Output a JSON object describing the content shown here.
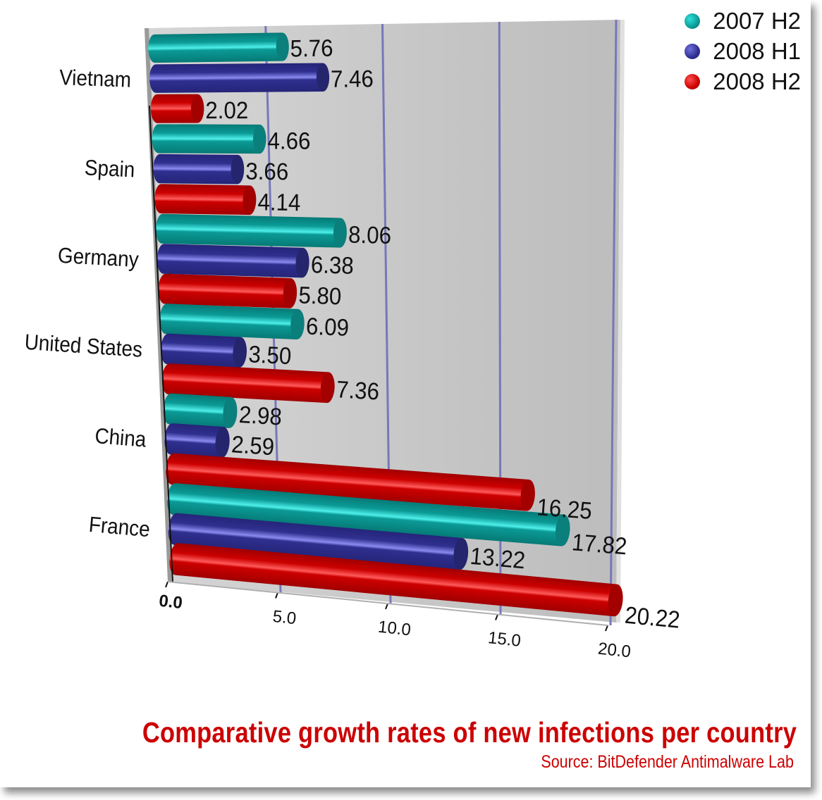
{
  "chart_data": {
    "type": "bar",
    "orientation": "horizontal",
    "style": "3d-cylinder",
    "title": "Comparative growth rates of new infections per country",
    "subtitle": "Source: BitDefender Antimalware Lab",
    "xlabel": "",
    "ylabel": "",
    "xlim": [
      0,
      20
    ],
    "x_ticks": [
      "0.0",
      "5.0",
      "10.0",
      "15.0",
      "20.0"
    ],
    "grid": true,
    "legend_position": "top-right",
    "categories": [
      "Vietnam",
      "Spain",
      "Germany",
      "United States",
      "China",
      "France"
    ],
    "series": [
      {
        "name": "2007 H2",
        "color": "#0b9a96",
        "values": [
          5.76,
          4.66,
          8.06,
          6.09,
          2.98,
          17.82
        ],
        "labels": [
          "5.76",
          "4.66",
          "8.06",
          "6.09",
          "2.98",
          "17.82"
        ]
      },
      {
        "name": "2008 H1",
        "color": "#2f2f8f",
        "values": [
          7.46,
          3.66,
          6.38,
          3.5,
          2.59,
          13.22
        ],
        "labels": [
          "7.46",
          "3.66",
          "6.38",
          "3.50",
          "2.59",
          "13.22"
        ]
      },
      {
        "name": "2008 H2",
        "color": "#cc0000",
        "values": [
          2.02,
          4.14,
          5.8,
          7.36,
          16.25,
          20.22
        ],
        "labels": [
          "2.02",
          "4.14",
          "5.80",
          "7.36",
          "16.25",
          "20.22"
        ]
      }
    ]
  },
  "legend": [
    {
      "label": "2007 H2",
      "color": "#0b9a96"
    },
    {
      "label": "2008 H1",
      "color": "#2f2f8f"
    },
    {
      "label": "2008 H2",
      "color": "#cc0000"
    }
  ]
}
